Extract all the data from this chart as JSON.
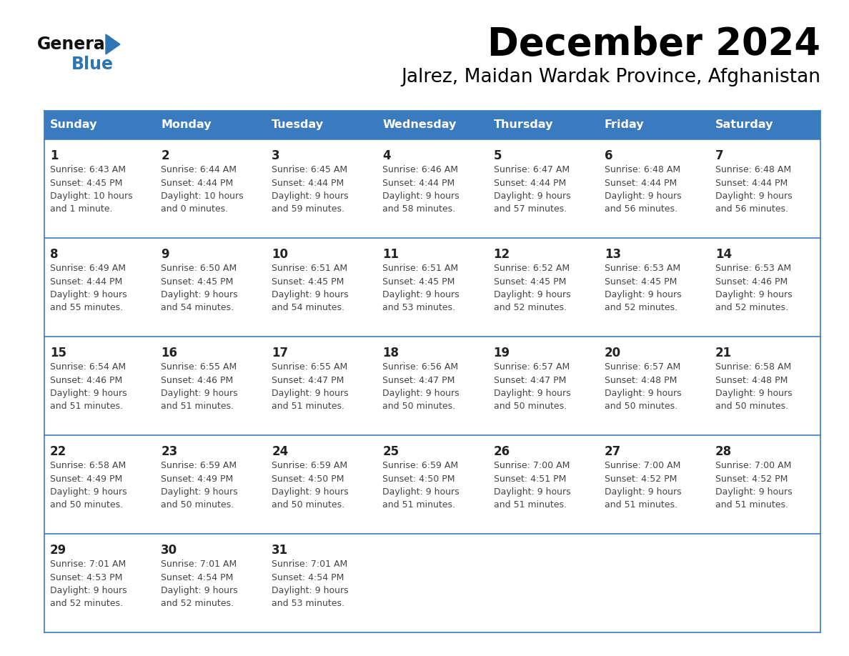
{
  "title": "December 2024",
  "subtitle": "Jalrez, Maidan Wardak Province, Afghanistan",
  "days_of_week": [
    "Sunday",
    "Monday",
    "Tuesday",
    "Wednesday",
    "Thursday",
    "Friday",
    "Saturday"
  ],
  "header_bg_color": "#3a7bbf",
  "header_text_color": "#ffffff",
  "cell_bg": "#ffffff",
  "row_line_color": "#3a7bbf",
  "day_num_color": "#222222",
  "cell_text_color": "#444444",
  "calendar": [
    [
      {
        "day": 1,
        "sunrise": "6:43 AM",
        "sunset": "4:45 PM",
        "daylight_h": "10 hours",
        "daylight_m": "and 1 minute."
      },
      {
        "day": 2,
        "sunrise": "6:44 AM",
        "sunset": "4:44 PM",
        "daylight_h": "10 hours",
        "daylight_m": "and 0 minutes."
      },
      {
        "day": 3,
        "sunrise": "6:45 AM",
        "sunset": "4:44 PM",
        "daylight_h": "9 hours",
        "daylight_m": "and 59 minutes."
      },
      {
        "day": 4,
        "sunrise": "6:46 AM",
        "sunset": "4:44 PM",
        "daylight_h": "9 hours",
        "daylight_m": "and 58 minutes."
      },
      {
        "day": 5,
        "sunrise": "6:47 AM",
        "sunset": "4:44 PM",
        "daylight_h": "9 hours",
        "daylight_m": "and 57 minutes."
      },
      {
        "day": 6,
        "sunrise": "6:48 AM",
        "sunset": "4:44 PM",
        "daylight_h": "9 hours",
        "daylight_m": "and 56 minutes."
      },
      {
        "day": 7,
        "sunrise": "6:48 AM",
        "sunset": "4:44 PM",
        "daylight_h": "9 hours",
        "daylight_m": "and 56 minutes."
      }
    ],
    [
      {
        "day": 8,
        "sunrise": "6:49 AM",
        "sunset": "4:44 PM",
        "daylight_h": "9 hours",
        "daylight_m": "and 55 minutes."
      },
      {
        "day": 9,
        "sunrise": "6:50 AM",
        "sunset": "4:45 PM",
        "daylight_h": "9 hours",
        "daylight_m": "and 54 minutes."
      },
      {
        "day": 10,
        "sunrise": "6:51 AM",
        "sunset": "4:45 PM",
        "daylight_h": "9 hours",
        "daylight_m": "and 54 minutes."
      },
      {
        "day": 11,
        "sunrise": "6:51 AM",
        "sunset": "4:45 PM",
        "daylight_h": "9 hours",
        "daylight_m": "and 53 minutes."
      },
      {
        "day": 12,
        "sunrise": "6:52 AM",
        "sunset": "4:45 PM",
        "daylight_h": "9 hours",
        "daylight_m": "and 52 minutes."
      },
      {
        "day": 13,
        "sunrise": "6:53 AM",
        "sunset": "4:45 PM",
        "daylight_h": "9 hours",
        "daylight_m": "and 52 minutes."
      },
      {
        "day": 14,
        "sunrise": "6:53 AM",
        "sunset": "4:46 PM",
        "daylight_h": "9 hours",
        "daylight_m": "and 52 minutes."
      }
    ],
    [
      {
        "day": 15,
        "sunrise": "6:54 AM",
        "sunset": "4:46 PM",
        "daylight_h": "9 hours",
        "daylight_m": "and 51 minutes."
      },
      {
        "day": 16,
        "sunrise": "6:55 AM",
        "sunset": "4:46 PM",
        "daylight_h": "9 hours",
        "daylight_m": "and 51 minutes."
      },
      {
        "day": 17,
        "sunrise": "6:55 AM",
        "sunset": "4:47 PM",
        "daylight_h": "9 hours",
        "daylight_m": "and 51 minutes."
      },
      {
        "day": 18,
        "sunrise": "6:56 AM",
        "sunset": "4:47 PM",
        "daylight_h": "9 hours",
        "daylight_m": "and 50 minutes."
      },
      {
        "day": 19,
        "sunrise": "6:57 AM",
        "sunset": "4:47 PM",
        "daylight_h": "9 hours",
        "daylight_m": "and 50 minutes."
      },
      {
        "day": 20,
        "sunrise": "6:57 AM",
        "sunset": "4:48 PM",
        "daylight_h": "9 hours",
        "daylight_m": "and 50 minutes."
      },
      {
        "day": 21,
        "sunrise": "6:58 AM",
        "sunset": "4:48 PM",
        "daylight_h": "9 hours",
        "daylight_m": "and 50 minutes."
      }
    ],
    [
      {
        "day": 22,
        "sunrise": "6:58 AM",
        "sunset": "4:49 PM",
        "daylight_h": "9 hours",
        "daylight_m": "and 50 minutes."
      },
      {
        "day": 23,
        "sunrise": "6:59 AM",
        "sunset": "4:49 PM",
        "daylight_h": "9 hours",
        "daylight_m": "and 50 minutes."
      },
      {
        "day": 24,
        "sunrise": "6:59 AM",
        "sunset": "4:50 PM",
        "daylight_h": "9 hours",
        "daylight_m": "and 50 minutes."
      },
      {
        "day": 25,
        "sunrise": "6:59 AM",
        "sunset": "4:50 PM",
        "daylight_h": "9 hours",
        "daylight_m": "and 51 minutes."
      },
      {
        "day": 26,
        "sunrise": "7:00 AM",
        "sunset": "4:51 PM",
        "daylight_h": "9 hours",
        "daylight_m": "and 51 minutes."
      },
      {
        "day": 27,
        "sunrise": "7:00 AM",
        "sunset": "4:52 PM",
        "daylight_h": "9 hours",
        "daylight_m": "and 51 minutes."
      },
      {
        "day": 28,
        "sunrise": "7:00 AM",
        "sunset": "4:52 PM",
        "daylight_h": "9 hours",
        "daylight_m": "and 51 minutes."
      }
    ],
    [
      {
        "day": 29,
        "sunrise": "7:01 AM",
        "sunset": "4:53 PM",
        "daylight_h": "9 hours",
        "daylight_m": "and 52 minutes."
      },
      {
        "day": 30,
        "sunrise": "7:01 AM",
        "sunset": "4:54 PM",
        "daylight_h": "9 hours",
        "daylight_m": "and 52 minutes."
      },
      {
        "day": 31,
        "sunrise": "7:01 AM",
        "sunset": "4:54 PM",
        "daylight_h": "9 hours",
        "daylight_m": "and 53 minutes."
      },
      null,
      null,
      null,
      null
    ]
  ]
}
